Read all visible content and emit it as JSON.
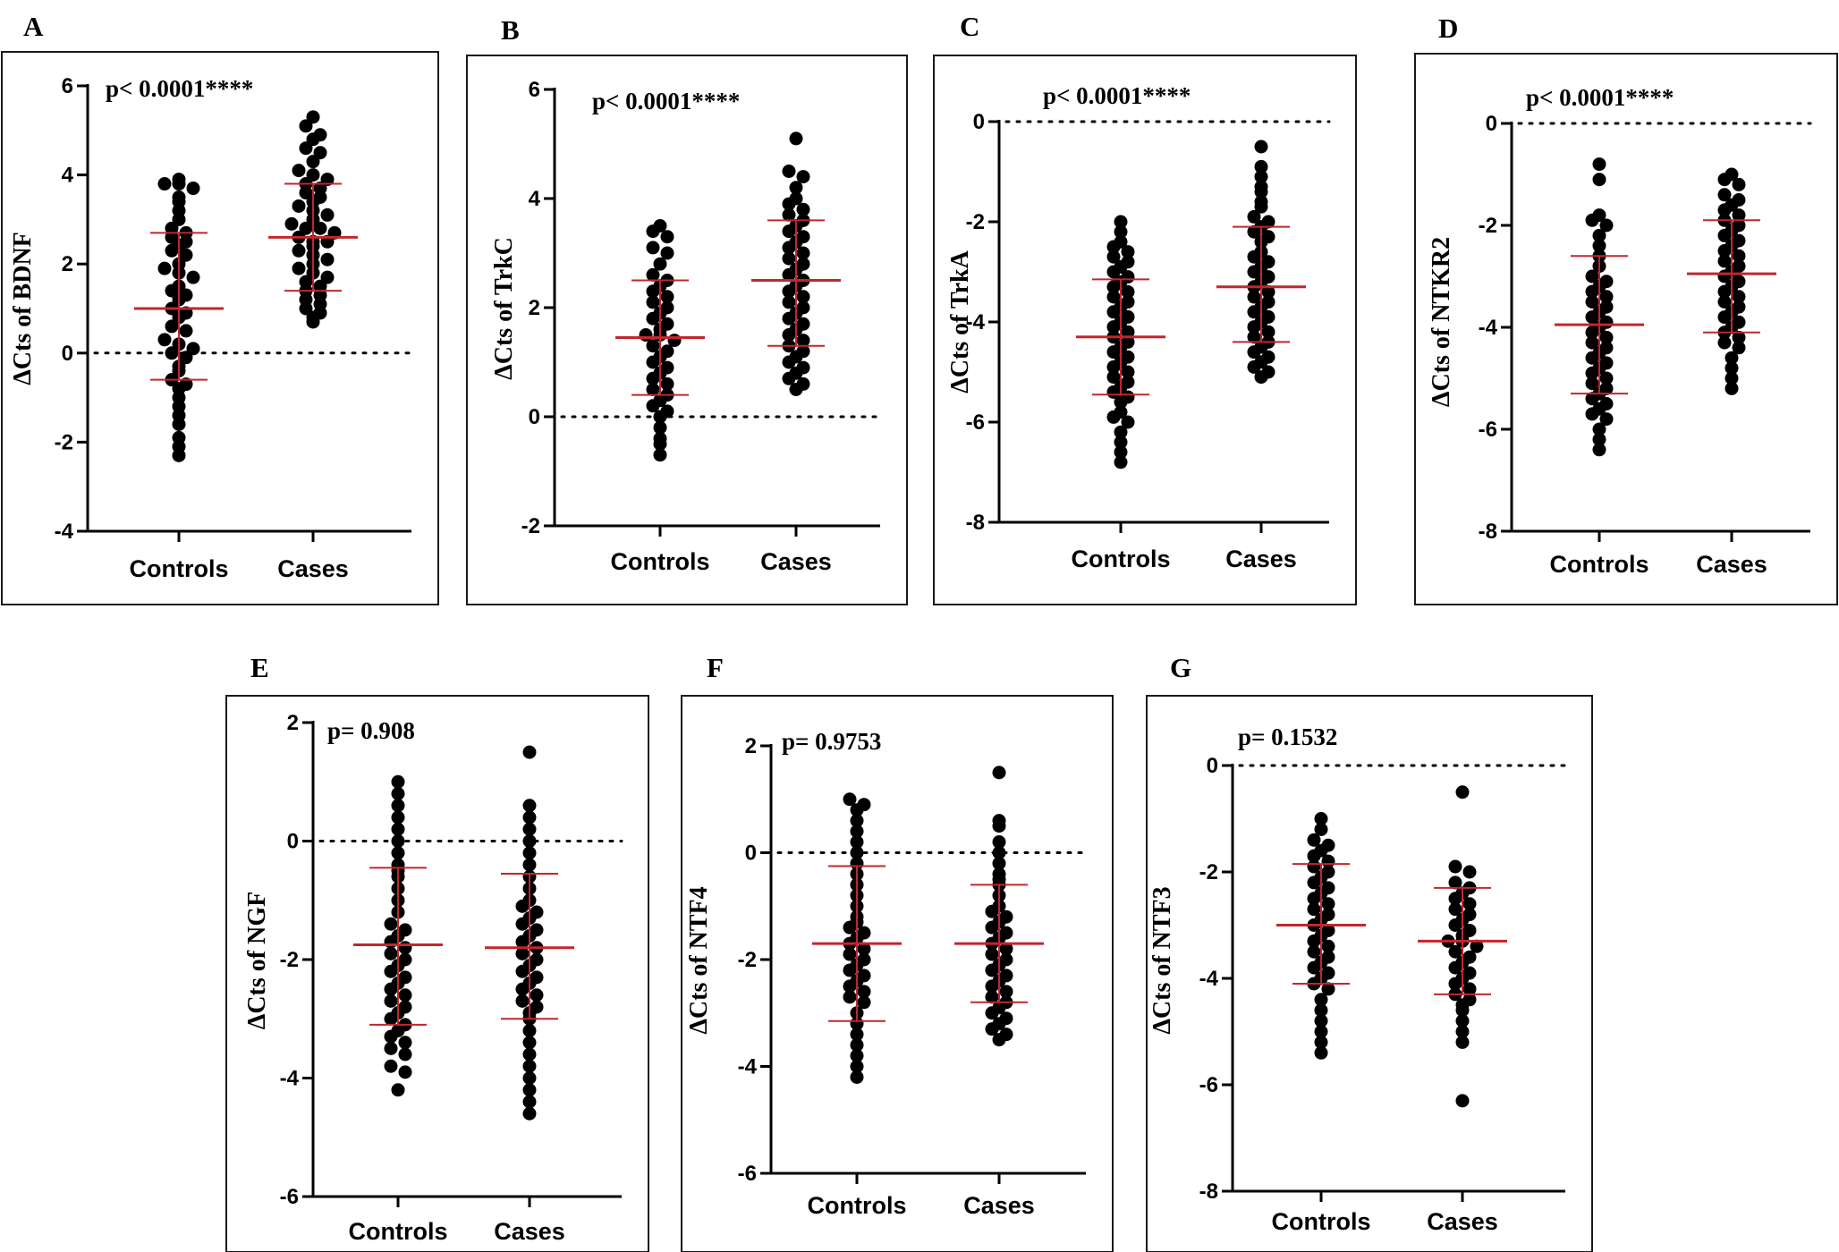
{
  "chart_data": [
    {
      "panel": "A",
      "type": "scatter",
      "ylabel": "ΔCts of BDNF",
      "annotation": "p< 0.0001****",
      "ylim": [
        -4,
        6
      ],
      "yticks": [
        -4,
        -2,
        0,
        2,
        4,
        6
      ],
      "reference_line": 0,
      "categories": [
        "Controls",
        "Cases"
      ],
      "series": [
        {
          "name": "Controls",
          "mean": 1.0,
          "sd_low": -0.6,
          "sd_high": 2.7,
          "values": [
            3.9,
            3.8,
            3.8,
            3.7,
            3.5,
            3.4,
            3.2,
            3.0,
            2.8,
            2.7,
            2.6,
            2.5,
            2.4,
            2.3,
            2.2,
            2.0,
            1.9,
            1.8,
            1.7,
            1.5,
            1.4,
            1.3,
            1.2,
            1.0,
            0.9,
            0.8,
            0.6,
            0.5,
            0.3,
            0.2,
            0.1,
            0.0,
            -0.1,
            -0.3,
            -0.4,
            -0.6,
            -0.7,
            -0.8,
            -1.0,
            -1.2,
            -1.4,
            -1.6,
            -1.9,
            -2.1,
            -2.3
          ]
        },
        {
          "name": "Cases",
          "mean": 2.6,
          "sd_low": 1.4,
          "sd_high": 3.8,
          "values": [
            5.3,
            5.1,
            4.9,
            4.8,
            4.6,
            4.5,
            4.3,
            4.1,
            4.0,
            3.9,
            3.8,
            3.7,
            3.6,
            3.5,
            3.4,
            3.3,
            3.2,
            3.1,
            3.0,
            2.9,
            2.8,
            2.8,
            2.7,
            2.6,
            2.5,
            2.5,
            2.4,
            2.3,
            2.2,
            2.1,
            2.0,
            1.9,
            1.8,
            1.7,
            1.6,
            1.5,
            1.4,
            1.3,
            1.2,
            1.1,
            1.0,
            0.9,
            0.8,
            0.7
          ]
        }
      ]
    },
    {
      "panel": "B",
      "type": "scatter",
      "ylabel": "ΔCts of TrkC",
      "annotation": "p< 0.0001****",
      "ylim": [
        -2,
        6
      ],
      "yticks": [
        -2,
        0,
        2,
        4,
        6
      ],
      "reference_line": 0,
      "categories": [
        "Controls",
        "Cases"
      ],
      "series": [
        {
          "name": "Controls",
          "mean": 1.45,
          "sd_low": 0.4,
          "sd_high": 2.5,
          "values": [
            3.5,
            3.4,
            3.3,
            3.1,
            3.0,
            2.8,
            2.6,
            2.5,
            2.4,
            2.3,
            2.2,
            2.1,
            2.0,
            1.9,
            1.8,
            1.7,
            1.6,
            1.5,
            1.5,
            1.4,
            1.3,
            1.2,
            1.1,
            1.0,
            0.9,
            0.8,
            0.7,
            0.6,
            0.5,
            0.4,
            0.3,
            0.2,
            0.1,
            0.0,
            -0.2,
            -0.4,
            -0.5,
            -0.7
          ]
        },
        {
          "name": "Cases",
          "mean": 2.5,
          "sd_low": 1.3,
          "sd_high": 3.6,
          "values": [
            5.1,
            4.5,
            4.4,
            4.2,
            4.0,
            3.9,
            3.8,
            3.7,
            3.6,
            3.5,
            3.4,
            3.3,
            3.2,
            3.1,
            3.0,
            2.9,
            2.8,
            2.7,
            2.6,
            2.5,
            2.4,
            2.3,
            2.2,
            2.1,
            2.0,
            1.9,
            1.8,
            1.7,
            1.6,
            1.5,
            1.4,
            1.3,
            1.2,
            1.1,
            1.0,
            0.9,
            0.8,
            0.7,
            0.6,
            0.5
          ]
        }
      ]
    },
    {
      "panel": "C",
      "type": "scatter",
      "ylabel": "ΔCts of TrkA",
      "annotation": "p< 0.0001****",
      "ylim": [
        -8,
        0
      ],
      "yticks": [
        -8,
        -6,
        -4,
        -2,
        0
      ],
      "reference_line": 0,
      "categories": [
        "Controls",
        "Cases"
      ],
      "series": [
        {
          "name": "Controls",
          "mean": -4.3,
          "sd_low": -5.45,
          "sd_high": -3.15,
          "values": [
            -2.0,
            -2.2,
            -2.4,
            -2.5,
            -2.6,
            -2.7,
            -2.8,
            -2.9,
            -3.0,
            -3.1,
            -3.2,
            -3.3,
            -3.4,
            -3.5,
            -3.6,
            -3.7,
            -3.8,
            -3.9,
            -4.0,
            -4.1,
            -4.2,
            -4.3,
            -4.4,
            -4.5,
            -4.6,
            -4.7,
            -4.8,
            -4.9,
            -5.0,
            -5.1,
            -5.2,
            -5.3,
            -5.4,
            -5.5,
            -5.6,
            -5.8,
            -5.9,
            -6.0,
            -6.2,
            -6.4,
            -6.6,
            -6.8
          ]
        },
        {
          "name": "Cases",
          "mean": -3.3,
          "sd_low": -4.4,
          "sd_high": -2.1,
          "values": [
            -0.5,
            -0.9,
            -1.1,
            -1.3,
            -1.4,
            -1.6,
            -1.7,
            -1.9,
            -2.0,
            -2.1,
            -2.2,
            -2.3,
            -2.4,
            -2.6,
            -2.7,
            -2.8,
            -2.9,
            -3.0,
            -3.1,
            -3.2,
            -3.3,
            -3.4,
            -3.5,
            -3.6,
            -3.7,
            -3.8,
            -3.9,
            -4.0,
            -4.1,
            -4.2,
            -4.3,
            -4.4,
            -4.5,
            -4.6,
            -4.7,
            -4.8,
            -4.9,
            -5.0,
            -5.1
          ]
        }
      ]
    },
    {
      "panel": "D",
      "type": "scatter",
      "ylabel": "ΔCts of NTKR2",
      "annotation": "p< 0.0001****",
      "ylim": [
        -8,
        0
      ],
      "yticks": [
        -8,
        -6,
        -4,
        -2,
        0
      ],
      "reference_line": 0,
      "categories": [
        "Controls",
        "Cases"
      ],
      "series": [
        {
          "name": "Controls",
          "mean": -3.95,
          "sd_low": -5.3,
          "sd_high": -2.6,
          "values": [
            -0.8,
            -1.1,
            -1.8,
            -1.9,
            -2.0,
            -2.2,
            -2.4,
            -2.6,
            -2.8,
            -3.0,
            -3.1,
            -3.2,
            -3.3,
            -3.4,
            -3.5,
            -3.6,
            -3.7,
            -3.8,
            -3.9,
            -4.0,
            -4.1,
            -4.2,
            -4.3,
            -4.4,
            -4.5,
            -4.6,
            -4.7,
            -4.8,
            -4.9,
            -5.0,
            -5.1,
            -5.2,
            -5.3,
            -5.4,
            -5.5,
            -5.6,
            -5.7,
            -5.8,
            -6.0,
            -6.2,
            -6.4
          ]
        },
        {
          "name": "Cases",
          "mean": -2.95,
          "sd_low": -4.1,
          "sd_high": -1.9,
          "values": [
            -1.0,
            -1.1,
            -1.2,
            -1.4,
            -1.5,
            -1.6,
            -1.7,
            -1.8,
            -1.9,
            -2.0,
            -2.1,
            -2.2,
            -2.3,
            -2.4,
            -2.5,
            -2.6,
            -2.7,
            -2.8,
            -2.9,
            -3.0,
            -3.1,
            -3.2,
            -3.3,
            -3.4,
            -3.5,
            -3.6,
            -3.7,
            -3.8,
            -3.9,
            -4.0,
            -4.1,
            -4.2,
            -4.3,
            -4.4,
            -4.6,
            -4.8,
            -5.0,
            -5.2
          ]
        }
      ]
    },
    {
      "panel": "E",
      "type": "scatter",
      "ylabel": "ΔCts of NGF",
      "annotation": "p= 0.908",
      "ylim": [
        -6,
        2
      ],
      "yticks": [
        -6,
        -4,
        -2,
        0,
        2
      ],
      "reference_line": 0,
      "categories": [
        "Controls",
        "Cases"
      ],
      "series": [
        {
          "name": "Controls",
          "mean": -1.75,
          "sd_low": -3.1,
          "sd_high": -0.45,
          "values": [
            1.0,
            0.8,
            0.6,
            0.4,
            0.2,
            0.0,
            -0.2,
            -0.4,
            -0.5,
            -0.6,
            -0.8,
            -1.0,
            -1.2,
            -1.4,
            -1.5,
            -1.6,
            -1.7,
            -1.8,
            -1.9,
            -2.0,
            -2.1,
            -2.2,
            -2.3,
            -2.4,
            -2.5,
            -2.6,
            -2.7,
            -2.8,
            -2.9,
            -3.0,
            -3.1,
            -3.2,
            -3.3,
            -3.4,
            -3.5,
            -3.6,
            -3.8,
            -3.9,
            -4.2
          ]
        },
        {
          "name": "Cases",
          "mean": -1.8,
          "sd_low": -3.0,
          "sd_high": -0.55,
          "values": [
            1.5,
            0.6,
            0.4,
            0.2,
            0.0,
            -0.2,
            -0.4,
            -0.6,
            -0.8,
            -1.0,
            -1.1,
            -1.2,
            -1.3,
            -1.4,
            -1.5,
            -1.6,
            -1.7,
            -1.8,
            -1.9,
            -2.0,
            -2.1,
            -2.2,
            -2.3,
            -2.4,
            -2.5,
            -2.6,
            -2.7,
            -2.8,
            -2.9,
            -3.0,
            -3.2,
            -3.4,
            -3.6,
            -3.8,
            -4.0,
            -4.2,
            -4.4,
            -4.6
          ]
        }
      ]
    },
    {
      "panel": "F",
      "type": "scatter",
      "ylabel": "ΔCts of NTF4",
      "annotation": "p= 0.9753",
      "ylim": [
        -6,
        2
      ],
      "yticks": [
        -6,
        -4,
        -2,
        0,
        2
      ],
      "reference_line": 0,
      "categories": [
        "Controls",
        "Cases"
      ],
      "series": [
        {
          "name": "Controls",
          "mean": -1.7,
          "sd_low": -3.15,
          "sd_high": -0.25,
          "values": [
            1.0,
            0.9,
            0.8,
            0.6,
            0.4,
            0.2,
            0.0,
            -0.2,
            -0.4,
            -0.6,
            -0.8,
            -1.0,
            -1.2,
            -1.3,
            -1.4,
            -1.5,
            -1.6,
            -1.7,
            -1.8,
            -1.9,
            -2.0,
            -2.1,
            -2.2,
            -2.3,
            -2.4,
            -2.5,
            -2.6,
            -2.7,
            -2.8,
            -3.0,
            -3.2,
            -3.4,
            -3.6,
            -3.8,
            -4.0,
            -4.2
          ]
        },
        {
          "name": "Cases",
          "mean": -1.7,
          "sd_low": -2.8,
          "sd_high": -0.6,
          "values": [
            1.5,
            0.6,
            0.5,
            0.2,
            0.0,
            -0.2,
            -0.4,
            -0.5,
            -0.6,
            -0.8,
            -1.0,
            -1.1,
            -1.2,
            -1.3,
            -1.4,
            -1.5,
            -1.6,
            -1.7,
            -1.8,
            -1.9,
            -2.0,
            -2.1,
            -2.2,
            -2.3,
            -2.4,
            -2.5,
            -2.6,
            -2.7,
            -2.8,
            -2.9,
            -3.0,
            -3.1,
            -3.2,
            -3.3,
            -3.4,
            -3.5
          ]
        }
      ]
    },
    {
      "panel": "G",
      "type": "scatter",
      "ylabel": "ΔCts of NTF3",
      "annotation": "p= 0.1532",
      "ylim": [
        -8,
        0
      ],
      "yticks": [
        -8,
        -6,
        -4,
        -2,
        0
      ],
      "reference_line": 0,
      "categories": [
        "Controls",
        "Cases"
      ],
      "series": [
        {
          "name": "Controls",
          "mean": -3.0,
          "sd_low": -4.1,
          "sd_high": -1.85,
          "values": [
            -1.0,
            -1.2,
            -1.4,
            -1.5,
            -1.6,
            -1.7,
            -1.8,
            -1.9,
            -2.0,
            -2.1,
            -2.2,
            -2.3,
            -2.4,
            -2.5,
            -2.6,
            -2.7,
            -2.8,
            -2.9,
            -3.0,
            -3.1,
            -3.2,
            -3.3,
            -3.4,
            -3.5,
            -3.6,
            -3.7,
            -3.8,
            -3.9,
            -4.0,
            -4.1,
            -4.2,
            -4.4,
            -4.6,
            -4.8,
            -5.0,
            -5.2,
            -5.4
          ]
        },
        {
          "name": "Cases",
          "mean": -3.3,
          "sd_low": -4.3,
          "sd_high": -2.3,
          "values": [
            -0.5,
            -1.9,
            -2.0,
            -2.2,
            -2.3,
            -2.4,
            -2.5,
            -2.6,
            -2.7,
            -2.8,
            -2.9,
            -3.0,
            -3.1,
            -3.2,
            -3.3,
            -3.3,
            -3.4,
            -3.5,
            -3.6,
            -3.7,
            -3.8,
            -3.9,
            -4.0,
            -4.1,
            -4.2,
            -4.3,
            -4.4,
            -4.5,
            -4.6,
            -4.8,
            -5.0,
            -5.2,
            -6.3
          ]
        }
      ]
    }
  ]
}
